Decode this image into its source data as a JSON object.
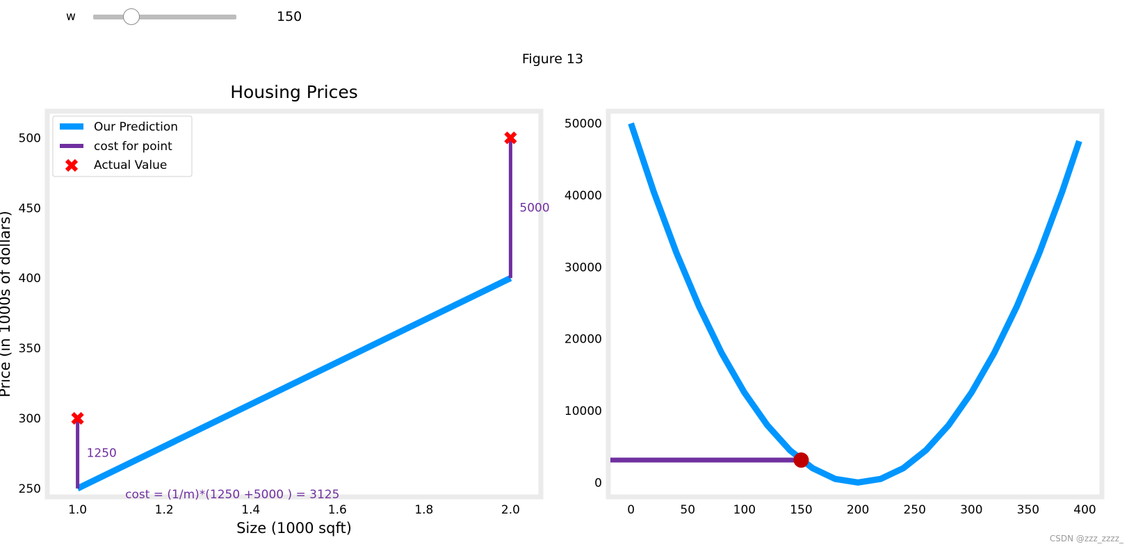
{
  "widget": {
    "slider_label": "w",
    "slider_value_text": "150",
    "slider": {
      "value": 150,
      "min": 0,
      "max": 400
    }
  },
  "figure_title": "Figure 13",
  "watermark": "CSDN @zzz_zzzz_",
  "colors": {
    "prediction": "#0096ff",
    "cost_line": "#7030a0",
    "actual_marker": "#ff0000",
    "current_point": "#c00000",
    "frame": "#ebebeb"
  },
  "chart_data": [
    {
      "type": "line",
      "title": "Housing Prices",
      "xlabel": "Size (1000 sqft)",
      "ylabel": "Price (in 1000s of dollars)",
      "xlim": [
        0.93,
        2.07
      ],
      "ylim": [
        244,
        519
      ],
      "xticks": [
        1.0,
        1.2,
        1.4,
        1.6,
        1.8,
        2.0
      ],
      "xtick_labels": [
        "1.0",
        "1.2",
        "1.4",
        "1.6",
        "1.8",
        "2.0"
      ],
      "yticks": [
        250,
        300,
        350,
        400,
        450,
        500
      ],
      "ytick_labels": [
        "250",
        "300",
        "350",
        "400",
        "450",
        "500"
      ],
      "grid": false,
      "legend_position": "top-left",
      "legend": [
        "Our Prediction",
        "cost for point",
        "Actual Value"
      ],
      "prediction": {
        "name": "Our Prediction",
        "x": [
          1.0,
          2.0
        ],
        "y": [
          250,
          400
        ]
      },
      "cost_segments": [
        {
          "x": 1.0,
          "y0": 250,
          "y1": 300,
          "label": "1250"
        },
        {
          "x": 2.0,
          "y0": 400,
          "y1": 500,
          "label": "5000"
        }
      ],
      "actual_values": {
        "name": "Actual Value",
        "x": [
          1.0,
          2.0
        ],
        "y": [
          300,
          500
        ]
      },
      "cost_annotation": "cost = (1/m)*(1250 +5000 ) = 3125"
    },
    {
      "type": "line",
      "title": "",
      "xlabel": "",
      "ylabel": "",
      "xlim": [
        -20,
        415
      ],
      "ylim": [
        -2000,
        51700
      ],
      "xticks": [
        0,
        50,
        100,
        150,
        200,
        250,
        300,
        350,
        400
      ],
      "xtick_labels": [
        "0",
        "50",
        "100",
        "150",
        "200",
        "250",
        "300",
        "350",
        "400"
      ],
      "yticks": [
        0,
        10000,
        20000,
        30000,
        40000,
        50000
      ],
      "ytick_labels": [
        "0",
        "10000",
        "20000",
        "30000",
        "40000",
        "50000"
      ],
      "grid": false,
      "cost_curve": {
        "x": [
          0,
          20,
          40,
          60,
          80,
          100,
          120,
          140,
          160,
          180,
          200,
          220,
          240,
          260,
          280,
          300,
          320,
          340,
          360,
          380,
          395
        ],
        "y": [
          50000,
          40500,
          32000,
          24500,
          18000,
          12500,
          8000,
          4500,
          2000,
          500,
          0,
          500,
          2000,
          4500,
          8000,
          12500,
          18000,
          24500,
          32000,
          40500,
          47531
        ]
      },
      "current_cost": {
        "w": 150,
        "cost": 3125
      }
    }
  ]
}
